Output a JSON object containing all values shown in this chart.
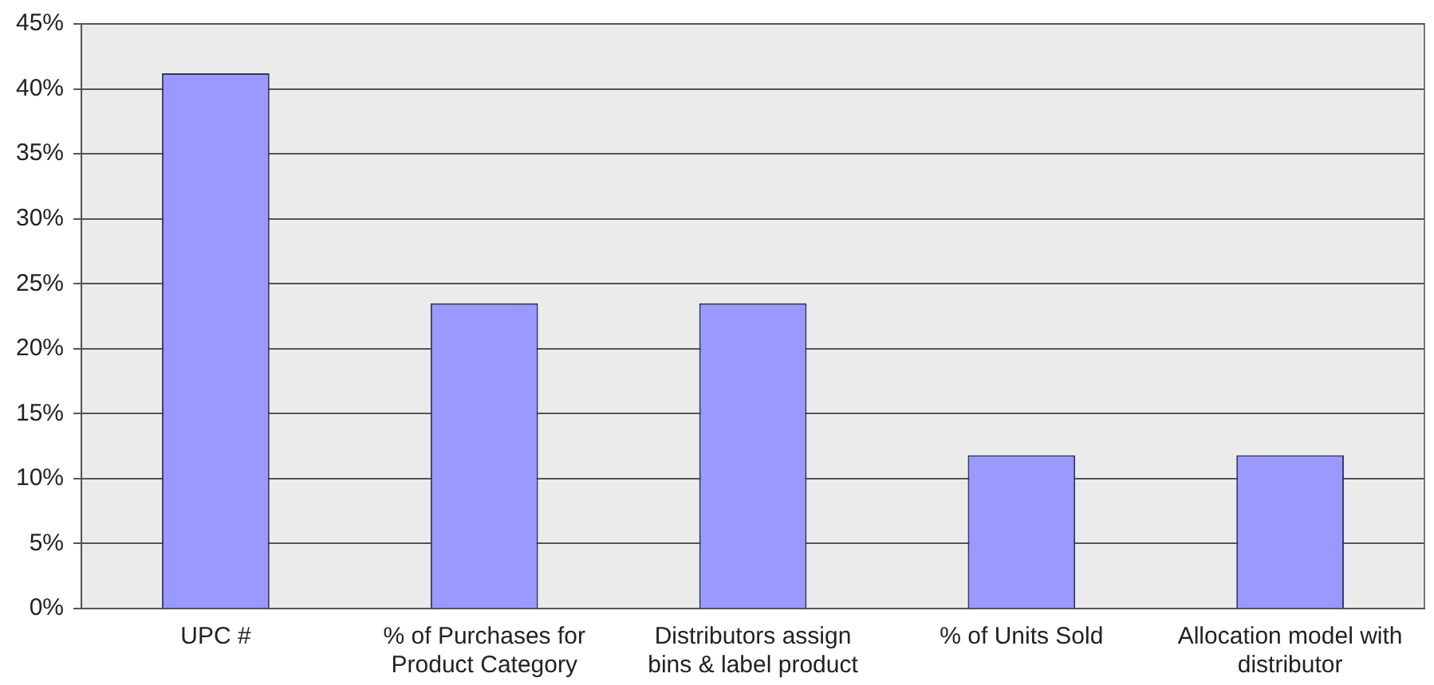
{
  "chart_data": {
    "type": "bar",
    "categories": [
      "UPC #",
      "% of Purchases for Product Category",
      "Distributors assign bins & label product",
      "% of Units Sold",
      "Allocation model with distributor"
    ],
    "values": [
      41.2,
      23.5,
      23.5,
      11.8,
      11.8
    ],
    "color": "#9999ff",
    "ylim": [
      0,
      45
    ],
    "yticks": [
      {
        "value": 0,
        "label": "0%"
      },
      {
        "value": 5,
        "label": "5%"
      },
      {
        "value": 10,
        "label": "10%"
      },
      {
        "value": 15,
        "label": "15%"
      },
      {
        "value": 20,
        "label": "20%"
      },
      {
        "value": 25,
        "label": "25%"
      },
      {
        "value": 30,
        "label": "30%"
      },
      {
        "value": 35,
        "label": "35%"
      },
      {
        "value": 40,
        "label": "40%"
      },
      {
        "value": 45,
        "label": "45%"
      }
    ],
    "grid": "y",
    "legend": false
  }
}
